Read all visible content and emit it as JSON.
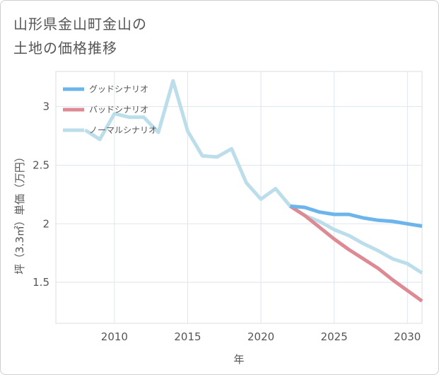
{
  "title_lines": [
    "山形県金山町金山の",
    "土地の価格推移"
  ],
  "chart_data": {
    "type": "line",
    "title": "山形県金山町金山の土地の価格推移",
    "xlabel": "年",
    "ylabel": "坪（3.3㎡）単価（万円）",
    "xlim": [
      2006,
      2031
    ],
    "ylim": [
      1.15,
      3.3
    ],
    "x_ticks": [
      2010,
      2015,
      2020,
      2025,
      2030
    ],
    "y_ticks": [
      1.5,
      2,
      2.5,
      3
    ],
    "x_tick_labels": [
      "2010",
      "2015",
      "2020",
      "2025",
      "2030"
    ],
    "y_tick_labels": [
      "1.5",
      "2",
      "2.5",
      "3"
    ],
    "grid": true,
    "legend_position": "top-left",
    "series": [
      {
        "name": "グッドシナリオ",
        "color": "#6cb4ec",
        "x": [
          2022,
          2023,
          2024,
          2025,
          2026,
          2027,
          2028,
          2029,
          2030,
          2031
        ],
        "y": [
          2.15,
          2.14,
          2.1,
          2.08,
          2.08,
          2.05,
          2.03,
          2.02,
          2.0,
          1.98
        ]
      },
      {
        "name": "バッドシナリオ",
        "color": "#de8a94",
        "x": [
          2022,
          2023,
          2024,
          2025,
          2026,
          2027,
          2028,
          2029,
          2030,
          2031
        ],
        "y": [
          2.15,
          2.07,
          1.97,
          1.87,
          1.78,
          1.7,
          1.62,
          1.52,
          1.43,
          1.34
        ]
      },
      {
        "name": "ノーマルシナリオ",
        "color": "#bcdeeb",
        "x": [
          2008,
          2009,
          2010,
          2011,
          2012,
          2013,
          2014,
          2015,
          2016,
          2017,
          2018,
          2019,
          2020,
          2021,
          2022,
          2023,
          2024,
          2025,
          2026,
          2027,
          2028,
          2029,
          2030,
          2031
        ],
        "y": [
          2.8,
          2.72,
          2.94,
          2.91,
          2.91,
          2.78,
          3.22,
          2.79,
          2.58,
          2.57,
          2.64,
          2.35,
          2.21,
          2.3,
          2.15,
          2.07,
          2.02,
          1.95,
          1.9,
          1.83,
          1.77,
          1.7,
          1.66,
          1.58
        ]
      }
    ]
  }
}
